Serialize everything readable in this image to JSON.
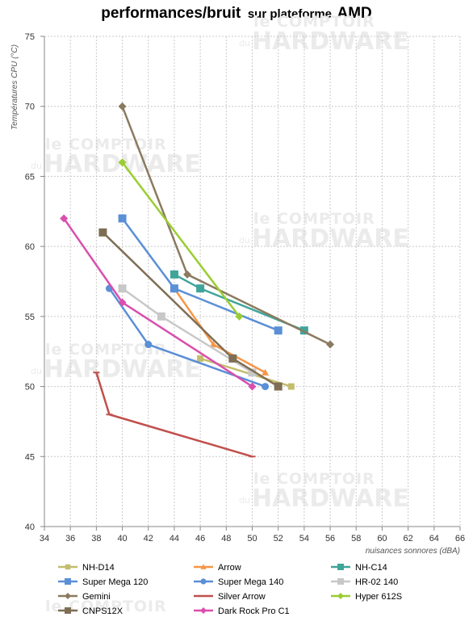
{
  "title": {
    "main": "performances/bruit",
    "sub": "sur plateforme",
    "brand": "AMD"
  },
  "watermark": {
    "top": "le COMPTOIR",
    "du": "du",
    "bottom": "HARDWARE"
  },
  "chart_data": {
    "type": "scatter",
    "xlabel": "nuisances sonnores (dBA)",
    "ylabel": "Températures CPU (°C)",
    "xlim": [
      34,
      66
    ],
    "ylim": [
      40,
      75
    ],
    "xticks": [
      34,
      36,
      38,
      40,
      42,
      44,
      46,
      48,
      50,
      52,
      54,
      56,
      58,
      60,
      62,
      64,
      66
    ],
    "yticks": [
      40,
      45,
      50,
      55,
      60,
      65,
      70,
      75
    ],
    "grid": true,
    "legend_position": "bottom",
    "series": [
      {
        "name": "NH-D14",
        "color": "#c3bd6e",
        "marker": "square-small",
        "points": [
          [
            46,
            52
          ],
          [
            53,
            50
          ]
        ]
      },
      {
        "name": "Arrow",
        "color": "#f79646",
        "marker": "triangle",
        "points": [
          [
            44,
            57
          ],
          [
            47,
            53
          ],
          [
            51,
            51
          ]
        ]
      },
      {
        "name": "NH-C14",
        "color": "#3fa59b",
        "marker": "square",
        "points": [
          [
            44,
            58
          ],
          [
            46,
            57
          ],
          [
            54,
            54
          ]
        ]
      },
      {
        "name": "Super Mega 120",
        "color": "#5b8fd6",
        "marker": "square",
        "points": [
          [
            40,
            62
          ],
          [
            44,
            57
          ],
          [
            52,
            54
          ]
        ]
      },
      {
        "name": "Super Mega 140",
        "color": "#5b8fd6",
        "marker": "circle",
        "points": [
          [
            39,
            57
          ],
          [
            42,
            53
          ],
          [
            51,
            50
          ]
        ]
      },
      {
        "name": "HR-02 140",
        "color": "#c8c8c8",
        "marker": "square",
        "points": [
          [
            40,
            57
          ],
          [
            43,
            55
          ],
          [
            50,
            51
          ]
        ]
      },
      {
        "name": "Gemini",
        "color": "#8b7a60",
        "marker": "diamond",
        "points": [
          [
            40,
            70
          ],
          [
            45,
            58
          ],
          [
            56,
            53
          ]
        ]
      },
      {
        "name": "Silver Arrow",
        "color": "#c0504d",
        "marker": "dash",
        "points": [
          [
            38,
            51
          ],
          [
            39,
            48
          ],
          [
            50,
            45
          ]
        ]
      },
      {
        "name": "Hyper 612S",
        "color": "#9acd32",
        "marker": "diamond",
        "points": [
          [
            40,
            66
          ],
          [
            49,
            55
          ]
        ]
      },
      {
        "name": "CNPS12X",
        "color": "#7f6e55",
        "marker": "square",
        "points": [
          [
            38.5,
            61
          ],
          [
            48.5,
            52
          ],
          [
            52,
            50
          ]
        ]
      },
      {
        "name": "Dark Rock Pro C1",
        "color": "#d94fae",
        "marker": "diamond",
        "points": [
          [
            35.5,
            62
          ],
          [
            40,
            56
          ],
          [
            50,
            50
          ]
        ]
      }
    ]
  }
}
